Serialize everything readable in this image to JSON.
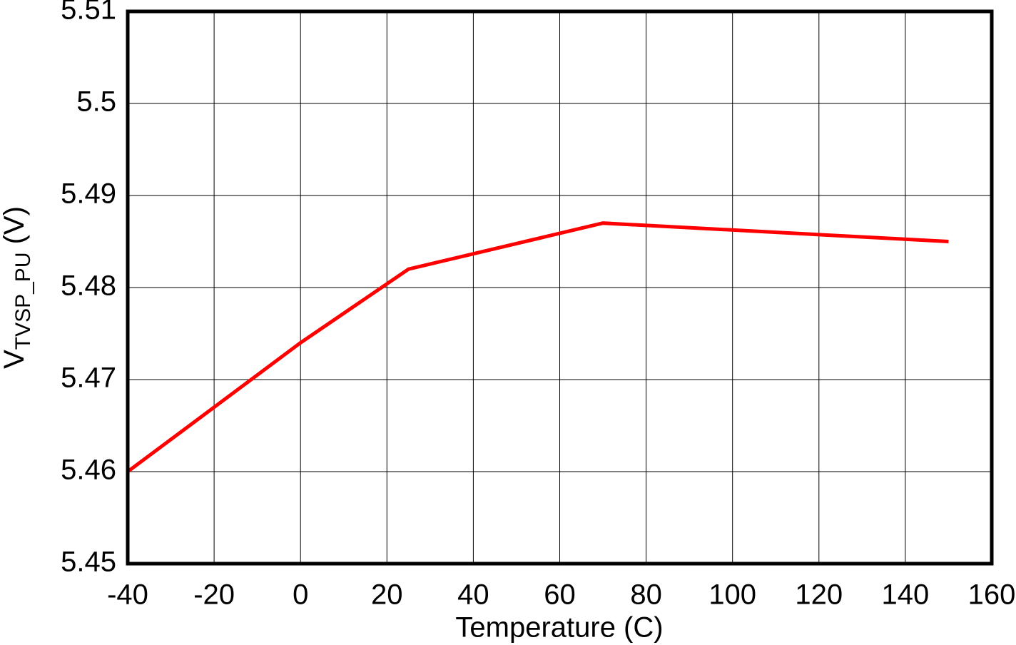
{
  "chart_data": {
    "type": "line",
    "xlabel": "Temperature (C)",
    "ylabel": {
      "main": "V",
      "sub": "TVSP_PU",
      "suffix": " (V)"
    },
    "x": [
      -40,
      0,
      25,
      70,
      150
    ],
    "series": [
      {
        "color": "#ff0000",
        "values": [
          5.46,
          5.474,
          5.482,
          5.487,
          5.485
        ]
      }
    ],
    "xlim": [
      -40,
      160
    ],
    "xticks": [
      -40,
      -20,
      0,
      20,
      40,
      60,
      80,
      100,
      120,
      140,
      160
    ],
    "ylim": [
      5.45,
      5.51
    ],
    "yticks": [
      5.45,
      5.46,
      5.47,
      5.48,
      5.49,
      5.5,
      5.51
    ],
    "grid": true
  }
}
